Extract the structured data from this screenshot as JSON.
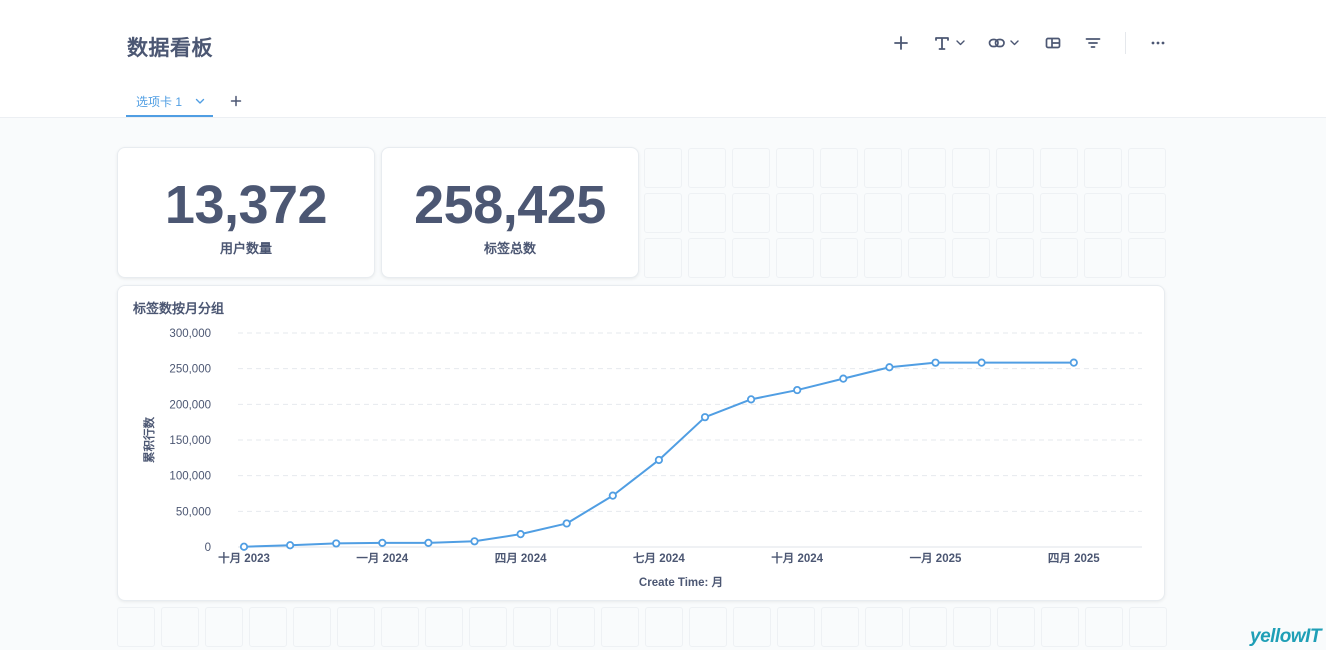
{
  "dashboard": {
    "title": "数据看板",
    "tab_label": "选项卡 1",
    "toolbar": [
      "add-icon",
      "text-icon",
      "link-icon",
      "section-icon",
      "filter-icon",
      "more-icon"
    ]
  },
  "cards": [
    {
      "value": "13,372",
      "label": "用户数量"
    },
    {
      "value": "258,425",
      "label": "标签总数"
    }
  ],
  "chart": {
    "title": "标签数按月分组"
  },
  "chart_data": {
    "type": "line",
    "title": "标签数按月分组",
    "xlabel": "Create Time: 月",
    "ylabel": "累积行数",
    "ylim": [
      0,
      300000
    ],
    "yticks": [
      "300,000",
      "250,000",
      "200,000",
      "150,000",
      "100,000",
      "50,000",
      "0"
    ],
    "x_ticks": [
      "十月 2023",
      "一月 2024",
      "四月 2024",
      "七月 2024",
      "十月 2024",
      "一月 2025",
      "四月 2025"
    ],
    "x": [
      "2023-10",
      "2023-11",
      "2023-12",
      "2024-01",
      "2024-02",
      "2024-03",
      "2024-04",
      "2024-05",
      "2024-06",
      "2024-07",
      "2024-08",
      "2024-09",
      "2024-10",
      "2024-11",
      "2024-12",
      "2025-01",
      "2025-02",
      "2025-04"
    ],
    "series": [
      {
        "values": [
          400,
          2500,
          5000,
          5800,
          5800,
          8000,
          18000,
          33000,
          72000,
          122000,
          182000,
          207000,
          220000,
          236000,
          252000,
          258400,
          258425,
          258425
        ]
      }
    ],
    "grid": true,
    "color": "#509ee3"
  },
  "watermark": "yellowIT"
}
